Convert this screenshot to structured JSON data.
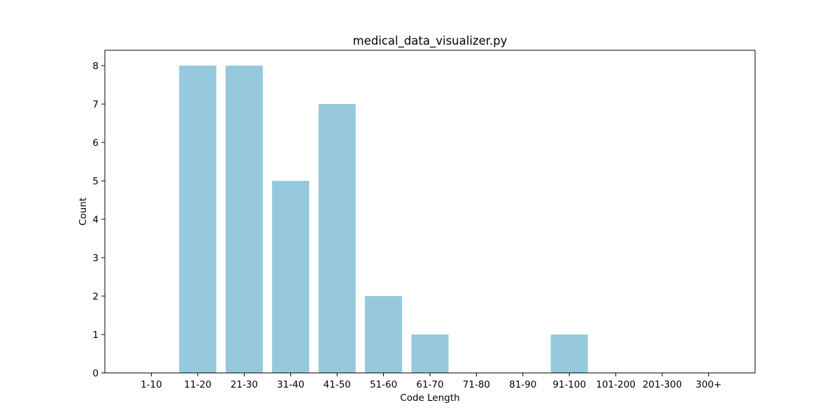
{
  "chart_data": {
    "type": "bar",
    "title": "medical_data_visualizer.py",
    "xlabel": "Code Length",
    "ylabel": "Count",
    "categories": [
      "1-10",
      "11-20",
      "21-30",
      "31-40",
      "41-50",
      "51-60",
      "61-70",
      "71-80",
      "81-90",
      "91-100",
      "101-200",
      "201-300",
      "300+"
    ],
    "values": [
      0,
      8,
      8,
      5,
      7,
      2,
      1,
      0,
      0,
      1,
      0,
      0,
      0
    ],
    "ylim": [
      0,
      8.4
    ],
    "yticks": [
      0,
      1,
      2,
      3,
      4,
      5,
      6,
      7,
      8
    ],
    "grid": false,
    "legend": "none",
    "bar_color": "#96c9dd"
  }
}
